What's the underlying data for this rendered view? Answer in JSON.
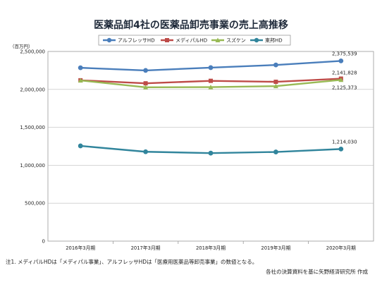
{
  "chart_data": {
    "type": "line",
    "title": "医薬品卸4社の医薬品卸売事業の売上高推移",
    "ylabel": "（百万円）",
    "categories": [
      "2016年3月期",
      "2017年3月期",
      "2018年3月期",
      "2019年3月期",
      "2020年3月期"
    ],
    "ylim": [
      0,
      2500000
    ],
    "yticks": [
      "0",
      "500,000",
      "1,000,000",
      "1,500,000",
      "2,000,000",
      "2,500,000"
    ],
    "legend_position": "top",
    "grid": true,
    "series": [
      {
        "name": "アルフレッサHD",
        "color": "#4a7ebb",
        "values": [
          2285000,
          2250000,
          2287000,
          2322000,
          2375539
        ],
        "end_label": "2,375,539"
      },
      {
        "name": "メディパルHD",
        "color": "#be4b48",
        "values": [
          2120000,
          2080000,
          2113000,
          2100000,
          2141828
        ],
        "end_label": "2,141,828"
      },
      {
        "name": "スズケン",
        "color": "#98b954",
        "values": [
          2118000,
          2028000,
          2030000,
          2043000,
          2125373
        ],
        "end_label": "2,125,373"
      },
      {
        "name": "東邦HD",
        "color": "#31859c",
        "values": [
          1255000,
          1178000,
          1160000,
          1175000,
          1214030
        ],
        "end_label": "1,214,030"
      }
    ]
  },
  "notes": {
    "left": "注1. メディパルHDは「メディパル事業」、アルフレッサHDは「医療用医薬品等卸売事業」の数値となる。",
    "right": "各社の決算資料を基に矢野経済研究所 作成"
  }
}
